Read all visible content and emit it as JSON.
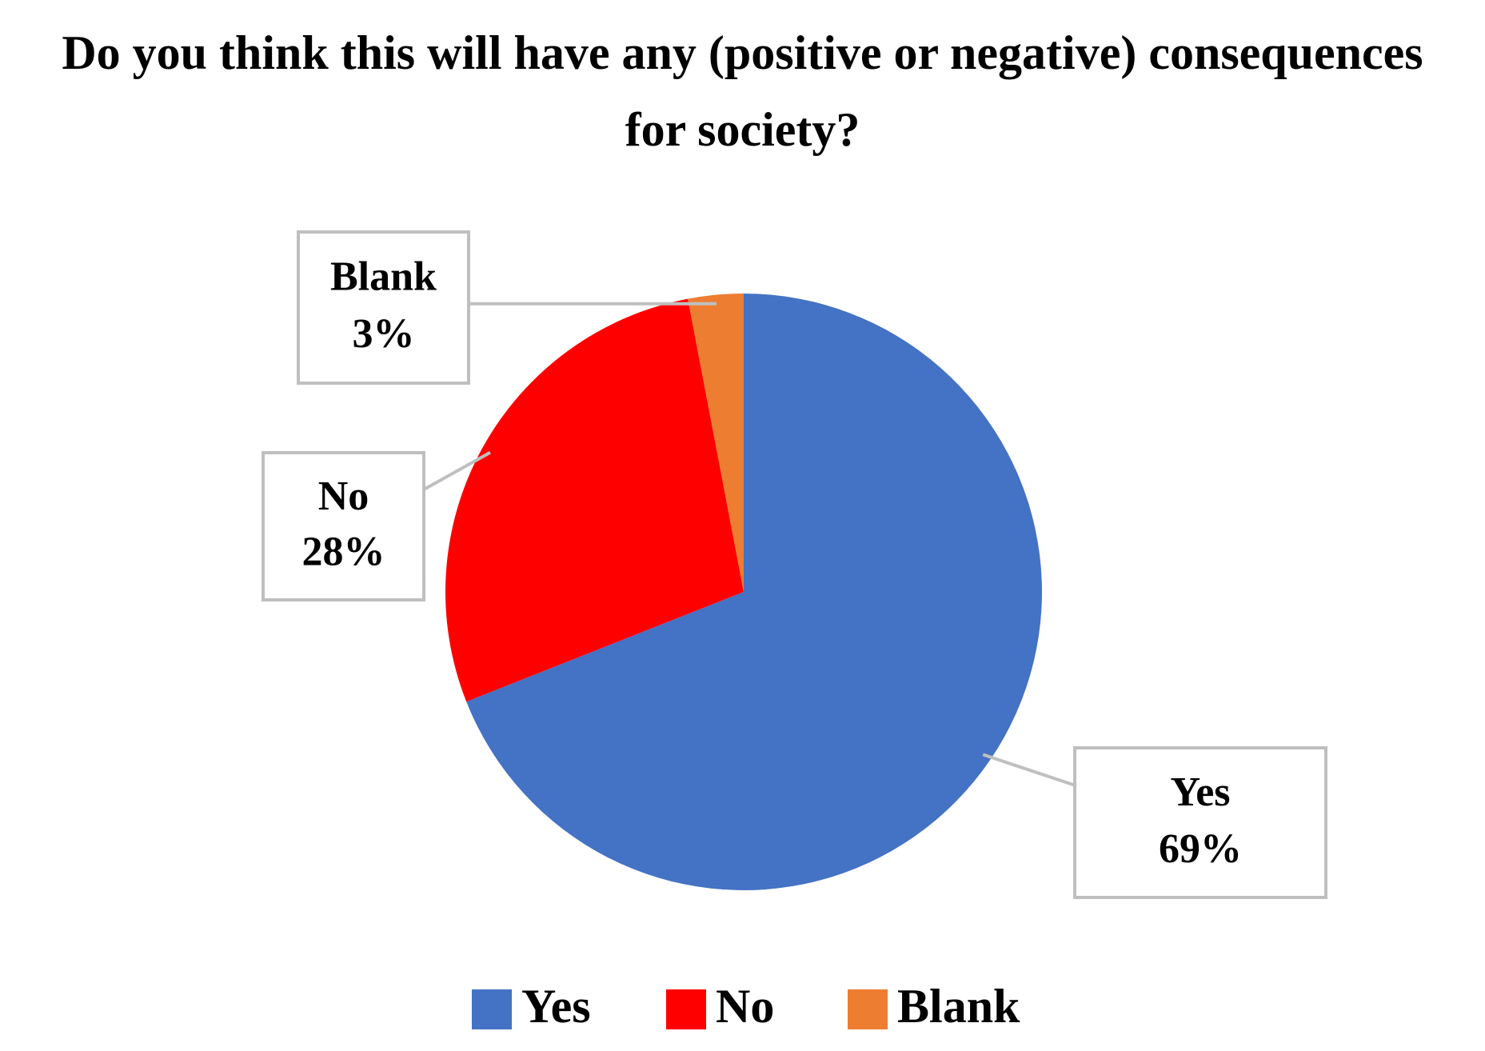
{
  "chart_data": {
    "type": "pie",
    "title": "Do you think this will have any (positive or negative) consequences for society?",
    "categories": [
      "Yes",
      "No",
      "Blank"
    ],
    "values": [
      69,
      28,
      3
    ],
    "value_labels": [
      "69%",
      "28%",
      "3%"
    ],
    "colors": [
      "#4472c4",
      "#ff0000",
      "#ed7d31"
    ],
    "legend": "bottom"
  }
}
